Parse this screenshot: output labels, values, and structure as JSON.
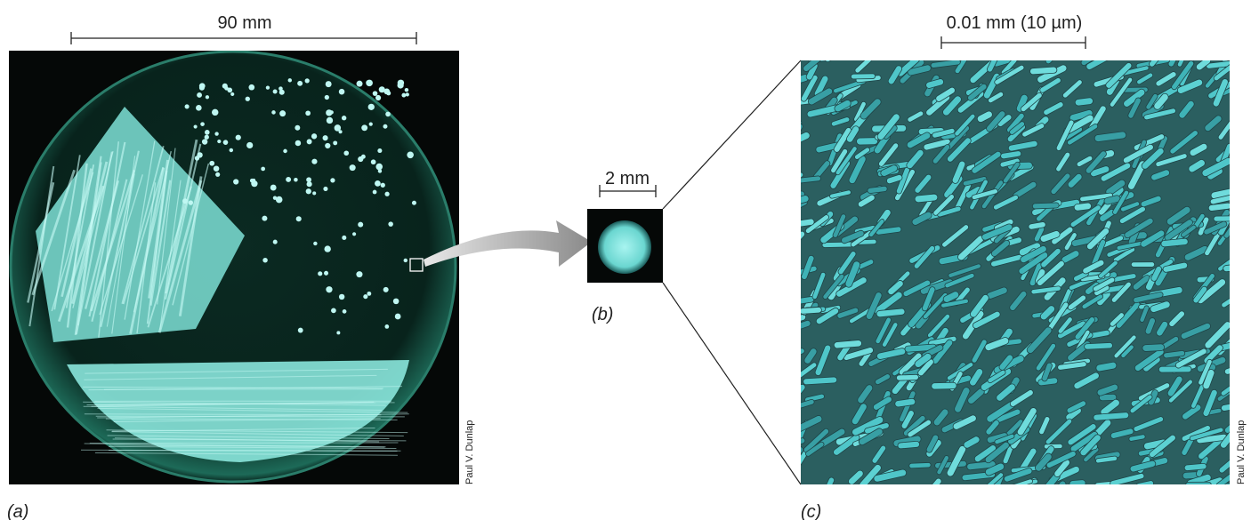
{
  "panel_a": {
    "scale_label": "90 mm",
    "label": "(a)",
    "credit": "Paul V. Dunlap"
  },
  "panel_b": {
    "scale_label": "2 mm",
    "label": "(b)"
  },
  "panel_c": {
    "scale_label": "0.01 mm (10 µm)",
    "label": "(c)",
    "credit": "Paul V. Dunlap"
  }
}
